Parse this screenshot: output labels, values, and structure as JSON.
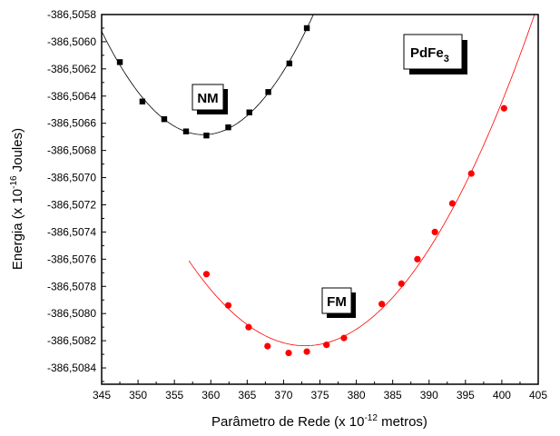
{
  "chart_data": {
    "type": "scatter",
    "xlabel": "Parâmetro de Rede (x 10",
    "xlabel_exp": "-12",
    "xlabel_unit": " metros)",
    "ylabel": "Energia (x 10",
    "ylabel_exp": "-16",
    "ylabel_unit": " Joules)",
    "xlim": [
      345,
      405
    ],
    "ylim": [
      -386.50852,
      -386.5058
    ],
    "x_ticks": [
      "345",
      "350",
      "355",
      "360",
      "365",
      "370",
      "375",
      "380",
      "385",
      "390",
      "395",
      "400",
      "405"
    ],
    "y_ticks": [
      "-386,5058",
      "-386,5060",
      "-386,5062",
      "-386,5064",
      "-386,5066",
      "-386,5068",
      "-386,5070",
      "-386,5072",
      "-386,5074",
      "-386,5076",
      "-386,5078",
      "-386,5080",
      "-386,5082",
      "-386,5084"
    ],
    "grid": false,
    "compound_label": {
      "base": "PdFe",
      "sub": "3"
    },
    "series": [
      {
        "name": "NM",
        "marker": "square",
        "color": "#000000",
        "x": [
          347.5,
          350.6,
          353.6,
          356.6,
          359.4,
          362.4,
          365.3,
          367.9,
          370.8,
          373.2
        ],
        "y": [
          -386.50615,
          -386.50644,
          -386.50657,
          -386.50666,
          -386.50669,
          -386.50663,
          -386.50652,
          -386.50637,
          -386.50616,
          -386.5059
        ]
      },
      {
        "name": "FM",
        "marker": "circle",
        "color": "#ff0000",
        "x": [
          359.4,
          362.4,
          365.2,
          367.8,
          370.7,
          373.2,
          375.9,
          378.3,
          383.5,
          386.2,
          388.4,
          390.8,
          393.2,
          395.8,
          400.3
        ],
        "y": [
          -386.50771,
          -386.50794,
          -386.5081,
          -386.50824,
          -386.50829,
          -386.50828,
          -386.50823,
          -386.50818,
          -386.50793,
          -386.50778,
          -386.5076,
          -386.5074,
          -386.50719,
          -386.50697,
          -386.50649
        ]
      }
    ]
  }
}
